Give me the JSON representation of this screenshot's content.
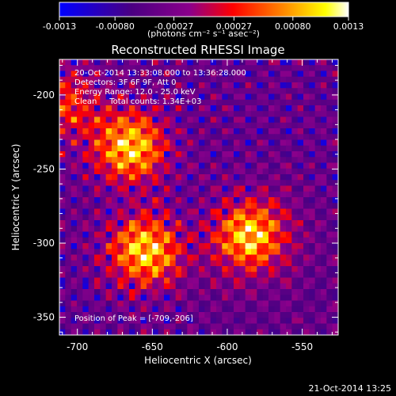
{
  "chart_data": {
    "type": "heatmap",
    "title": "Reconstructed RHESSI Image",
    "xlabel": "Heliocentric X (arcsec)",
    "ylabel": "Heliocentric Y (arcsec)",
    "xlim": [
      -712,
      -526
    ],
    "ylim": [
      -362,
      -176
    ],
    "x_ticks": [
      "-700",
      "-650",
      "-600",
      "-550"
    ],
    "x_tick_values": [
      -700,
      -650,
      -600,
      -550
    ],
    "y_ticks": [
      "-200",
      "-250",
      "-300",
      "-350"
    ],
    "y_tick_values": [
      -200,
      -250,
      -300,
      -350
    ],
    "colorbar": {
      "min": -0.0013,
      "max": 0.0013,
      "tick_labels": [
        "-0.0013",
        "-0.00080",
        "-0.00027",
        "0.00027",
        "0.00080",
        "0.0013"
      ],
      "tick_values": [
        -0.0013,
        -0.0008,
        -0.00027,
        0.00027,
        0.0008,
        0.0013
      ],
      "units_label": "(photons cm⁻² s⁻¹ asec⁻²)",
      "colors": [
        "#0000ff",
        "#4b0082",
        "#8b008b",
        "#ff0000",
        "#ff8c00",
        "#ffff00",
        "#ffffff"
      ]
    },
    "grid": false,
    "sources": [
      {
        "x": -665,
        "y": -235
      },
      {
        "x": -655,
        "y": -305
      },
      {
        "x": -585,
        "y": -295
      },
      {
        "x": -708,
        "y": -205
      }
    ],
    "annotations": [
      "20-Oct-2014 13:33:08.000 to 13:36:28.000",
      "Detectors: 3F 6F 9F, Att 0",
      "Energy Range: 12.0 - 25.0 keV",
      "Clean     Total counts: 1.34E+03"
    ],
    "peak_label": "Position of Peak = [-709,-206]"
  },
  "footer": {
    "date": "21-Oct-2014 13:25"
  }
}
